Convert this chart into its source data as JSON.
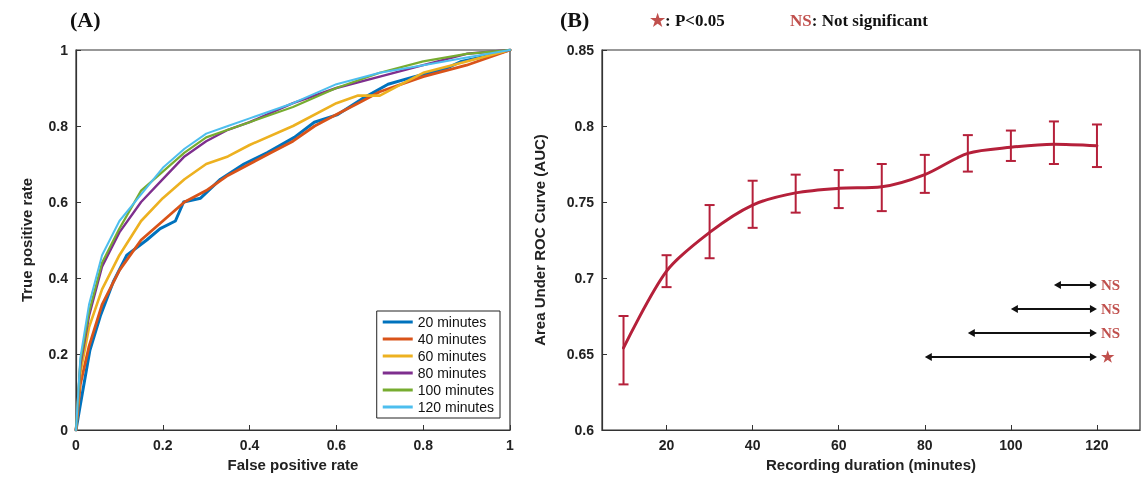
{
  "chart_data": [
    {
      "type": "line",
      "title": "(A)",
      "xlabel": "False positive rate",
      "ylabel": "True positive rate",
      "xlim": [
        0,
        1
      ],
      "ylim": [
        0,
        1
      ],
      "xticks": [
        0,
        0.2,
        0.4,
        0.6,
        0.8,
        1
      ],
      "yticks": [
        0,
        0.2,
        0.4,
        0.6,
        0.8,
        1
      ],
      "grid": false,
      "legend": "bottom right",
      "marker": "none",
      "line_style": "solid",
      "series": [
        {
          "name": "20 minutes",
          "color": "#0072bd",
          "x": [
            0,
            0.009,
            0.032,
            0.056,
            0.086,
            0.117,
            0.163,
            0.194,
            0.229,
            0.248,
            0.287,
            0.333,
            0.387,
            0.441,
            0.503,
            0.549,
            0.603,
            0.657,
            0.719,
            0.78,
            0.85,
            0.888,
            0.95,
            1
          ],
          "values": [
            0,
            0.06,
            0.21,
            0.3,
            0.39,
            0.46,
            0.5,
            0.53,
            0.55,
            0.6,
            0.61,
            0.66,
            0.7,
            0.73,
            0.77,
            0.81,
            0.83,
            0.87,
            0.91,
            0.93,
            0.95,
            0.97,
            0.985,
            1
          ]
        },
        {
          "name": "40 minutes",
          "color": "#d95319",
          "x": [
            0,
            0.01,
            0.03,
            0.06,
            0.1,
            0.15,
            0.2,
            0.25,
            0.3,
            0.35,
            0.4,
            0.45,
            0.5,
            0.55,
            0.6,
            0.65,
            0.7,
            0.8,
            0.9,
            1
          ],
          "values": [
            0,
            0.12,
            0.22,
            0.33,
            0.42,
            0.5,
            0.55,
            0.6,
            0.63,
            0.67,
            0.7,
            0.73,
            0.76,
            0.8,
            0.83,
            0.86,
            0.89,
            0.93,
            0.96,
            1
          ]
        },
        {
          "name": "60 minutes",
          "color": "#edb120",
          "x": [
            0,
            0.01,
            0.03,
            0.06,
            0.1,
            0.15,
            0.2,
            0.25,
            0.3,
            0.35,
            0.4,
            0.5,
            0.6,
            0.65,
            0.7,
            0.75,
            0.8,
            0.9,
            1
          ],
          "values": [
            0,
            0.15,
            0.27,
            0.37,
            0.46,
            0.55,
            0.61,
            0.66,
            0.7,
            0.72,
            0.75,
            0.8,
            0.86,
            0.88,
            0.88,
            0.91,
            0.94,
            0.97,
            1
          ]
        },
        {
          "name": "80 minutes",
          "color": "#7e2f8e",
          "x": [
            0,
            0.01,
            0.03,
            0.06,
            0.1,
            0.15,
            0.2,
            0.25,
            0.3,
            0.35,
            0.4,
            0.5,
            0.6,
            0.7,
            0.8,
            0.9,
            1
          ],
          "values": [
            0,
            0.17,
            0.3,
            0.43,
            0.52,
            0.6,
            0.66,
            0.72,
            0.76,
            0.79,
            0.81,
            0.86,
            0.9,
            0.93,
            0.96,
            0.99,
            1
          ]
        },
        {
          "name": "100 minutes",
          "color": "#77ac30",
          "x": [
            0,
            0.01,
            0.03,
            0.06,
            0.1,
            0.15,
            0.2,
            0.25,
            0.3,
            0.35,
            0.4,
            0.5,
            0.6,
            0.7,
            0.8,
            0.9,
            1
          ],
          "values": [
            0,
            0.18,
            0.31,
            0.44,
            0.53,
            0.63,
            0.68,
            0.73,
            0.77,
            0.79,
            0.81,
            0.85,
            0.9,
            0.94,
            0.97,
            0.99,
            1
          ]
        },
        {
          "name": "120 minutes",
          "color": "#4dbeee",
          "x": [
            0,
            0.01,
            0.03,
            0.06,
            0.1,
            0.15,
            0.2,
            0.25,
            0.3,
            0.35,
            0.4,
            0.5,
            0.6,
            0.7,
            0.8,
            0.9,
            1
          ],
          "values": [
            0,
            0.19,
            0.33,
            0.46,
            0.55,
            0.62,
            0.69,
            0.74,
            0.78,
            0.8,
            0.82,
            0.86,
            0.91,
            0.94,
            0.96,
            0.98,
            1
          ]
        }
      ]
    },
    {
      "type": "line",
      "title": "(B)",
      "xlabel": "Recording duration (minutes)",
      "ylabel": "Area Under ROC Curve (AUC)",
      "xlim": [
        5,
        130
      ],
      "ylim": [
        0.6,
        0.85
      ],
      "xticks": [
        20,
        40,
        60,
        80,
        100,
        120
      ],
      "yticks": [
        0.6,
        0.65,
        0.7,
        0.75,
        0.8,
        0.85
      ],
      "grid": false,
      "legend": false,
      "marker": "none",
      "line_style": "solid",
      "annotations": [
        "★: P<0.05",
        "NS: Not significant",
        "NS",
        "NS",
        "NS",
        "★"
      ],
      "series": [
        {
          "color": "#b5203a",
          "x": [
            10,
            20,
            30,
            40,
            50,
            60,
            70,
            80,
            90,
            100,
            110,
            120
          ],
          "values": [
            0.654,
            0.7045,
            0.73,
            0.748,
            0.756,
            0.759,
            0.76,
            0.768,
            0.782,
            0.786,
            0.788,
            0.787
          ],
          "errors": [
            [
              0.63,
              0.675
            ],
            [
              0.694,
              0.715
            ],
            [
              0.713,
              0.748
            ],
            [
              0.733,
              0.764
            ],
            [
              0.743,
              0.768
            ],
            [
              0.746,
              0.771
            ],
            [
              0.744,
              0.775
            ],
            [
              0.756,
              0.781
            ],
            [
              0.77,
              0.794
            ],
            [
              0.777,
              0.797
            ],
            [
              0.775,
              0.803
            ],
            [
              0.773,
              0.801
            ]
          ]
        }
      ]
    }
  ]
}
